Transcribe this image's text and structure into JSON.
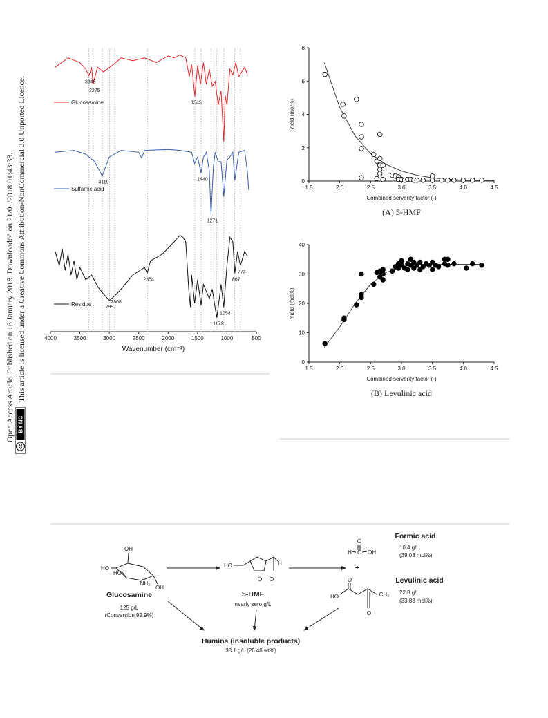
{
  "sidebar": {
    "line1": "Open Access Article. Published on 16 January 2018. Downloaded on 21/01/2018 01:43:38.",
    "line2": "This article is licensed under a Creative Commons Attribution-NonCommercial 3.0 Unported Licence.",
    "badge_icon": "cc",
    "badge_label": "BY-NC"
  },
  "chart_data": [
    {
      "type": "line",
      "xlabel": "Wavenumber (cm⁻¹)",
      "xlim": [
        4000,
        500
      ],
      "ylim": [
        0,
        300
      ],
      "xticks": [
        4000,
        3500,
        3000,
        2500,
        2000,
        1500,
        1000,
        500
      ],
      "series": [
        {
          "name": "Glucosamine",
          "color": "#e8262a",
          "peaks": [
            3345,
            3275,
            1545
          ],
          "x": [
            3920,
            3700,
            3500,
            3400,
            3345,
            3300,
            3275,
            3200,
            3100,
            2950,
            2800,
            2600,
            2400,
            2200,
            2000,
            1900,
            1800,
            1700,
            1640,
            1600,
            1545,
            1500,
            1450,
            1400,
            1350,
            1300,
            1250,
            1200,
            1150,
            1100,
            1054,
            1030,
            1000,
            950,
            900,
            850,
            800,
            700,
            650
          ],
          "values": [
            280,
            290,
            285,
            278,
            271,
            280,
            262,
            280,
            275,
            282,
            290,
            287,
            290,
            285,
            292,
            290,
            293,
            290,
            270,
            283,
            249,
            282,
            262,
            285,
            262,
            278,
            260,
            265,
            240,
            255,
            201,
            250,
            240,
            278,
            272,
            285,
            270,
            280,
            272
          ]
        },
        {
          "name": "Sulfamic acid",
          "color": "#3a5cae",
          "peaks": [
            3119,
            1440,
            1271
          ],
          "x": [
            3920,
            3600,
            3400,
            3250,
            3119,
            3000,
            2800,
            2500,
            2450,
            2400,
            2000,
            1800,
            1600,
            1550,
            1500,
            1440,
            1400,
            1350,
            1300,
            1271,
            1230,
            1200,
            1150,
            1100,
            1054,
            1000,
            950,
            900,
            867,
            800,
            700,
            650,
            630
          ],
          "values": [
            190,
            192,
            188,
            180,
            165,
            185,
            192,
            190,
            184,
            192,
            193,
            192,
            190,
            178,
            185,
            168,
            185,
            190,
            170,
            124,
            175,
            190,
            180,
            180,
            143,
            182,
            185,
            190,
            160,
            190,
            192,
            168,
            150
          ]
        },
        {
          "name": "Residue",
          "color": "#111111",
          "peaks": [
            2997,
            2908,
            2354,
            1172,
            1054,
            867,
            773
          ],
          "x": [
            3920,
            3850,
            3800,
            3750,
            3700,
            3650,
            3600,
            3550,
            3500,
            3400,
            3300,
            3200,
            3100,
            2997,
            2908,
            2800,
            2600,
            2400,
            2354,
            2300,
            2100,
            1900,
            1800,
            1750,
            1700,
            1650,
            1620,
            1600,
            1550,
            1500,
            1440,
            1400,
            1300,
            1250,
            1200,
            1172,
            1100,
            1054,
            1000,
            950,
            900,
            867,
            820,
            773,
            700,
            650
          ],
          "values": [
            85,
            70,
            88,
            65,
            82,
            60,
            75,
            55,
            68,
            55,
            60,
            48,
            40,
            33,
            38,
            45,
            60,
            68,
            62,
            75,
            82,
            95,
            102,
            100,
            95,
            45,
            26,
            60,
            30,
            55,
            28,
            50,
            35,
            45,
            25,
            15,
            50,
            26,
            70,
            100,
            95,
            62,
            85,
            70,
            85,
            80
          ]
        }
      ]
    },
    {
      "type": "scatter",
      "caption": "(A) 5-HMF",
      "xlabel": "Combined serverity factor (-)",
      "ylabel": "Yield (mol%)",
      "color": "#000000",
      "marker_fill": "#ffffff",
      "xlim": [
        1.5,
        4.5
      ],
      "ylim": [
        0,
        8
      ],
      "xticks": [
        1.5,
        {
          "value": 2,
          "label": "2.0"
        },
        2.5,
        {
          "value": 3,
          "label": "3.0"
        },
        3.5,
        {
          "value": 4,
          "label": "4.0"
        },
        4.5
      ],
      "yticks": [
        0,
        2,
        4,
        6,
        8
      ],
      "x": [
        1.76,
        2.05,
        2.07,
        2.27,
        2.35,
        2.35,
        2.35,
        2.35,
        2.55,
        2.6,
        2.65,
        2.65,
        2.65,
        2.65,
        2.65,
        2.7,
        2.6,
        2.7,
        2.85,
        2.9,
        2.95,
        2.95,
        3.0,
        3.05,
        3.1,
        3.15,
        3.2,
        3.25,
        3.35,
        3.5,
        3.5,
        3.65,
        3.75,
        3.85,
        4.0,
        4.15,
        4.3
      ],
      "values": [
        6.4,
        4.6,
        3.9,
        4.9,
        3.4,
        2.65,
        1.95,
        0.2,
        1.6,
        1.2,
        2.8,
        1.35,
        0.95,
        0.7,
        0.45,
        0.95,
        0.15,
        0.1,
        0.35,
        0.3,
        0.25,
        0.1,
        0.1,
        0.05,
        0.1,
        0.1,
        0.05,
        0.05,
        0.05,
        0.3,
        0.05,
        0.05,
        0.05,
        0.05,
        0.05,
        0.05,
        0.05
      ],
      "fit": {
        "color": "#444444",
        "x": [
          1.75,
          2.0,
          2.25,
          2.5,
          2.75,
          3.0,
          3.25,
          3.5,
          3.75,
          4.0,
          4.5
        ],
        "values": [
          7.1,
          4.4,
          2.7,
          1.65,
          1.0,
          0.6,
          0.35,
          0.2,
          0.1,
          0.05,
          0.02
        ]
      }
    },
    {
      "type": "scatter",
      "caption": "(B) Levulinic acid",
      "xlabel": "Combined serverity factor (-)",
      "ylabel": "Yield (mol%)",
      "color": "#000000",
      "marker_fill": "#000000",
      "xlim": [
        1.5,
        4.5
      ],
      "ylim": [
        0,
        40
      ],
      "xticks": [
        1.5,
        {
          "value": 2,
          "label": "2.0"
        },
        2.5,
        {
          "value": 3,
          "label": "3.0"
        },
        3.5,
        {
          "value": 4,
          "label": "4.0"
        },
        4.5
      ],
      "yticks": [
        0,
        10,
        20,
        30,
        40
      ],
      "x": [
        1.76,
        2.07,
        2.07,
        2.27,
        2.35,
        2.35,
        2.35,
        2.55,
        2.6,
        2.65,
        2.65,
        2.7,
        2.7,
        2.7,
        2.85,
        2.9,
        2.95,
        2.95,
        3.0,
        3.0,
        3.05,
        3.1,
        3.1,
        3.15,
        3.15,
        3.2,
        3.2,
        3.25,
        3.3,
        3.3,
        3.35,
        3.4,
        3.45,
        3.5,
        3.5,
        3.55,
        3.6,
        3.7,
        3.7,
        3.75,
        3.75,
        3.85,
        4.05,
        4.15,
        4.3
      ],
      "values": [
        6.3,
        15,
        14.5,
        19.5,
        30,
        23,
        22,
        26.5,
        30.5,
        31,
        29,
        31.5,
        28,
        30,
        31,
        32.5,
        33.5,
        32,
        34.5,
        33,
        32,
        33.5,
        31.5,
        35,
        33,
        34,
        32,
        33,
        34,
        31.5,
        32.5,
        33.5,
        33,
        34,
        31.5,
        33,
        32.5,
        35,
        33.5,
        35,
        33,
        33.5,
        32,
        33.5,
        33
      ],
      "fit": {
        "color": "#444444",
        "x": [
          1.75,
          2.0,
          2.25,
          2.5,
          2.75,
          3.0,
          3.25,
          3.5,
          4.3
        ],
        "values": [
          5,
          12,
          20,
          26.5,
          30.5,
          32.5,
          33.2,
          33.3,
          33.3
        ]
      }
    }
  ],
  "scheme": {
    "glucosamine": {
      "name": "Glucosamine",
      "conc": "125 g/L",
      "note": "(Conversion 92.9%)",
      "atoms": [
        "OH",
        "HO",
        "HO",
        "NH₂",
        "OH"
      ]
    },
    "hmf": {
      "name": "5-HMF",
      "conc": "nearly zero g/L",
      "atoms": [
        "HO",
        "O",
        "H",
        "O"
      ]
    },
    "formic_acid": {
      "name": "Formic acid",
      "conc": "10.4 g/L",
      "note": "(39.03 mol%)",
      "atoms": [
        "O",
        "H",
        "C",
        "OH"
      ]
    },
    "plus": "+",
    "levulinic_acid": {
      "name": "Levulinic acid",
      "conc": "22.8 g/L",
      "note": "(33.83 mol%)",
      "atoms": [
        "HO",
        "O",
        "CH₃",
        "O"
      ]
    },
    "humins": {
      "name": "Humins (insoluble products)",
      "conc": "33.1 g/L (26.48 wt%)"
    }
  }
}
